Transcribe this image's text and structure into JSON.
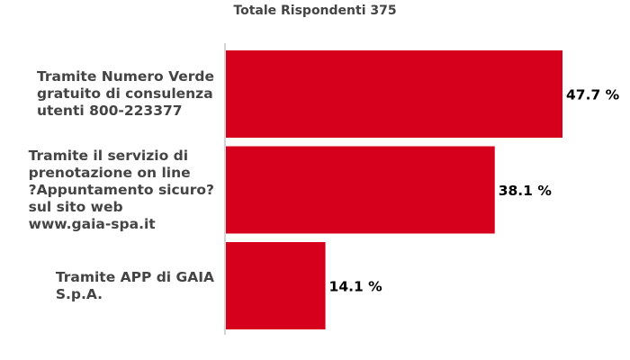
{
  "chart_data": {
    "type": "bar",
    "orientation": "horizontal",
    "title": "Totale Rispondenti 375",
    "categories": [
      "Tramite Numero Verde gratuito di consulenza utenti 800-223377",
      "Tramite il servizio di prenotazione on line ?Appuntamento sicuro? sul sito web www.gaia-spa.it",
      "Tramite APP di GAIA S.p.A."
    ],
    "category_lines": [
      "Tramite Numero Verde\ngratuito di consulenza\nutenti 800-223377",
      "Tramite il servizio di\nprenotazione on line\n?Appuntamento sicuro?\nsul sito web\nwww.gaia-spa.it",
      "Tramite APP di GAIA\nS.p.A."
    ],
    "values": [
      47.7,
      38.1,
      14.1
    ],
    "value_labels": [
      "47.7 %",
      "38.1 %",
      "14.1 %"
    ],
    "xlim": [
      0,
      50
    ],
    "bar_color": "#d6001c",
    "axis_color": "#aaaaaa",
    "grid": false,
    "legend": "none"
  }
}
